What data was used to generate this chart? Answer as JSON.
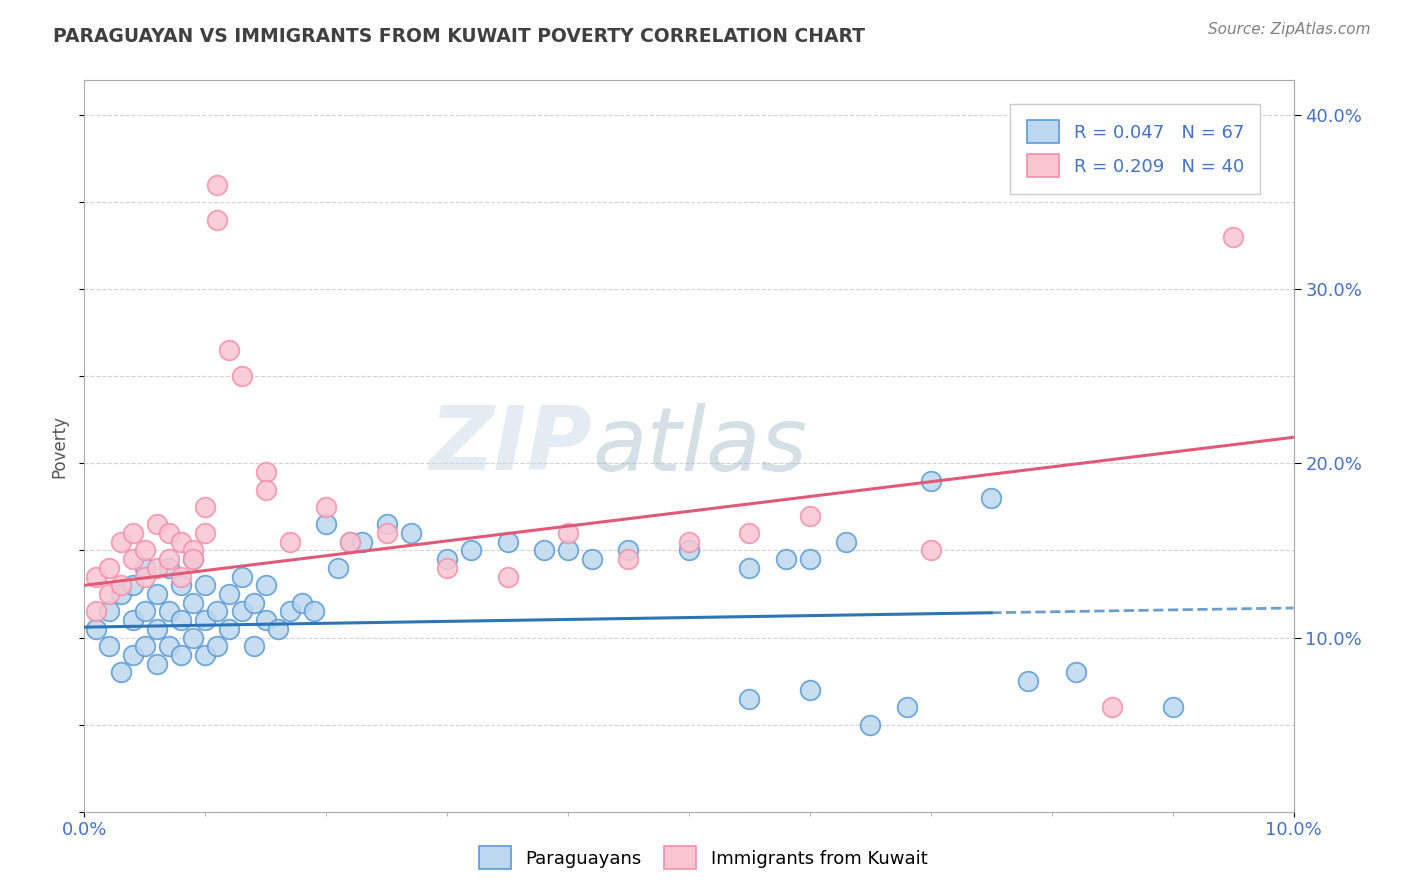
{
  "title": "PARAGUAYAN VS IMMIGRANTS FROM KUWAIT POVERTY CORRELATION CHART",
  "source": "Source: ZipAtlas.com",
  "ylabel": "Poverty",
  "watermark_zip": "ZIP",
  "watermark_atlas": "atlas",
  "legend_r1": "R = 0.047",
  "legend_n1": "N = 67",
  "legend_r2": "R = 0.209",
  "legend_n2": "N = 40",
  "blue_edge": "#5b9bd5",
  "blue_face": "#bdd7ee",
  "pink_edge": "#f48fac",
  "pink_face": "#f9c6d2",
  "trend_blue": "#2e75b6",
  "trend_pink": "#e05a78",
  "bg_color": "#ffffff",
  "grid_color": "#c8c8c8",
  "title_color": "#404040",
  "axis_label_color": "#4472c4",
  "ylabel_color": "#555555",
  "source_color": "#808080",
  "xmin": 0.0,
  "xmax": 0.1,
  "ymin": 0.0,
  "ymax": 0.42,
  "blue_x": [
    0.001,
    0.002,
    0.002,
    0.003,
    0.003,
    0.004,
    0.004,
    0.004,
    0.005,
    0.005,
    0.005,
    0.006,
    0.006,
    0.006,
    0.007,
    0.007,
    0.007,
    0.008,
    0.008,
    0.008,
    0.009,
    0.009,
    0.009,
    0.01,
    0.01,
    0.01,
    0.011,
    0.011,
    0.012,
    0.012,
    0.013,
    0.013,
    0.014,
    0.014,
    0.015,
    0.015,
    0.016,
    0.017,
    0.018,
    0.019,
    0.02,
    0.021,
    0.022,
    0.023,
    0.025,
    0.027,
    0.03,
    0.032,
    0.035,
    0.038,
    0.04,
    0.042,
    0.045,
    0.05,
    0.055,
    0.058,
    0.06,
    0.063,
    0.065,
    0.068,
    0.055,
    0.06,
    0.07,
    0.075,
    0.078,
    0.082,
    0.09
  ],
  "blue_y": [
    0.105,
    0.095,
    0.115,
    0.125,
    0.08,
    0.11,
    0.09,
    0.13,
    0.115,
    0.095,
    0.14,
    0.105,
    0.125,
    0.085,
    0.115,
    0.095,
    0.14,
    0.11,
    0.13,
    0.09,
    0.12,
    0.1,
    0.145,
    0.11,
    0.13,
    0.09,
    0.115,
    0.095,
    0.125,
    0.105,
    0.115,
    0.135,
    0.12,
    0.095,
    0.13,
    0.11,
    0.105,
    0.115,
    0.12,
    0.115,
    0.165,
    0.14,
    0.155,
    0.155,
    0.165,
    0.16,
    0.145,
    0.15,
    0.155,
    0.15,
    0.15,
    0.145,
    0.15,
    0.15,
    0.14,
    0.145,
    0.145,
    0.155,
    0.05,
    0.06,
    0.065,
    0.07,
    0.19,
    0.18,
    0.075,
    0.08,
    0.06
  ],
  "pink_x": [
    0.001,
    0.001,
    0.002,
    0.002,
    0.003,
    0.003,
    0.004,
    0.004,
    0.005,
    0.005,
    0.006,
    0.006,
    0.007,
    0.007,
    0.008,
    0.008,
    0.009,
    0.009,
    0.01,
    0.01,
    0.011,
    0.011,
    0.012,
    0.013,
    0.015,
    0.015,
    0.017,
    0.02,
    0.022,
    0.025,
    0.03,
    0.035,
    0.04,
    0.045,
    0.05,
    0.055,
    0.06,
    0.07,
    0.085,
    0.095
  ],
  "pink_y": [
    0.135,
    0.115,
    0.14,
    0.125,
    0.13,
    0.155,
    0.145,
    0.16,
    0.15,
    0.135,
    0.14,
    0.165,
    0.16,
    0.145,
    0.135,
    0.155,
    0.15,
    0.145,
    0.16,
    0.175,
    0.36,
    0.34,
    0.265,
    0.25,
    0.195,
    0.185,
    0.155,
    0.175,
    0.155,
    0.16,
    0.14,
    0.135,
    0.16,
    0.145,
    0.155,
    0.16,
    0.17,
    0.15,
    0.06,
    0.33
  ],
  "blue_trend_x": [
    0.0,
    0.1
  ],
  "blue_trend_y": [
    0.106,
    0.117
  ],
  "pink_trend_x": [
    0.0,
    0.1
  ],
  "pink_trend_y": [
    0.13,
    0.215
  ]
}
